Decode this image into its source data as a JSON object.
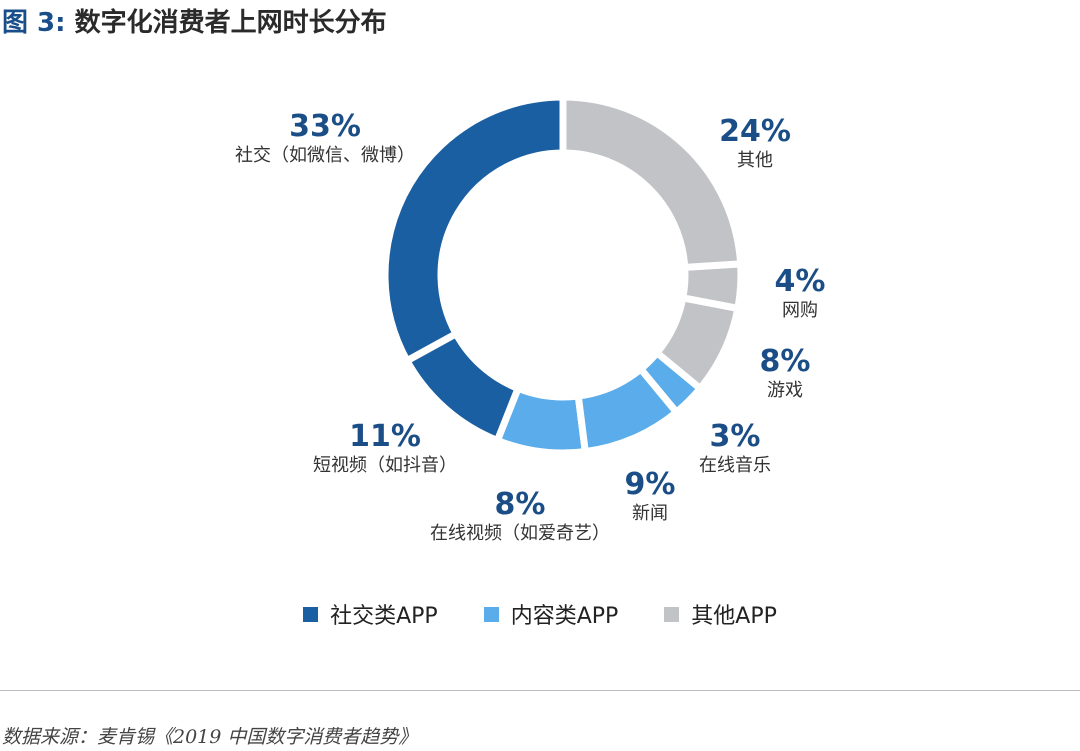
{
  "title": {
    "fig_no": "图 3:",
    "text": "数字化消费者上网时长分布"
  },
  "chart_data": {
    "type": "pie",
    "variant": "donut",
    "title": "数字化消费者上网时长分布",
    "slices": [
      {
        "label": "社交（如微信、微博）",
        "pct_label": "33%",
        "value": 33,
        "category": "社交类APP"
      },
      {
        "label": "短视频（如抖音）",
        "pct_label": "11%",
        "value": 11,
        "category": "社交类APP"
      },
      {
        "label": "在线视频（如爱奇艺）",
        "pct_label": "8%",
        "value": 8,
        "category": "内容类APP"
      },
      {
        "label": "新闻",
        "pct_label": "9%",
        "value": 9,
        "category": "内容类APP"
      },
      {
        "label": "在线音乐",
        "pct_label": "3%",
        "value": 3,
        "category": "内容类APP"
      },
      {
        "label": "游戏",
        "pct_label": "8%",
        "value": 8,
        "category": "其他APP"
      },
      {
        "label": "网购",
        "pct_label": "4%",
        "value": 4,
        "category": "其他APP"
      },
      {
        "label": "其他",
        "pct_label": "24%",
        "value": 24,
        "category": "其他APP"
      }
    ],
    "legend": [
      {
        "label": "社交类APP",
        "color": "#1b5fa3"
      },
      {
        "label": "内容类APP",
        "color": "#5aacea"
      },
      {
        "label": "其他APP",
        "color": "#c2c3c6"
      }
    ]
  },
  "source": "数据来源：麦肯锡《2019 中国数字消费者趋势》"
}
